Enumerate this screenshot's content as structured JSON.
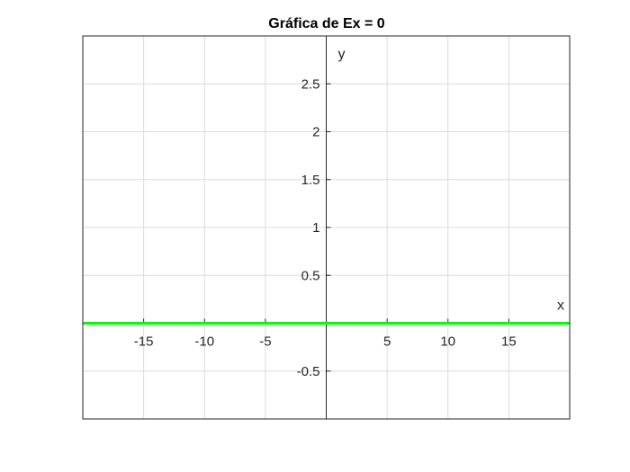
{
  "chart_data": {
    "type": "line",
    "title": "Gráfica de Ex = 0",
    "xlabel": "x",
    "ylabel": "y",
    "xlim": [
      -20,
      20
    ],
    "ylim": [
      -1,
      3
    ],
    "xticks": [
      -15,
      -10,
      -5,
      5,
      10,
      15
    ],
    "yticks": [
      -0.5,
      0.5,
      1,
      1.5,
      2,
      2.5
    ],
    "xtick_labels": [
      "-15",
      "-10",
      "-5",
      "5",
      "10",
      "15"
    ],
    "ytick_labels": [
      "-0.5",
      "0.5",
      "1",
      "1.5",
      "2",
      "2.5"
    ],
    "grid": true,
    "axis_location": "origin",
    "series": [
      {
        "x": [
          -20,
          20
        ],
        "y": [
          0,
          0
        ],
        "color": "#00ff00"
      }
    ]
  }
}
